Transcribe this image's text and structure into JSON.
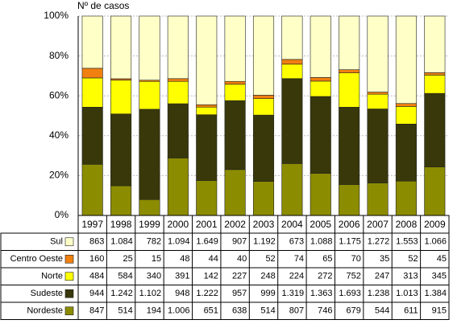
{
  "chart_data": {
    "type": "bar",
    "stack": "percent",
    "y_label": "Nº de casos",
    "categories": [
      "1997",
      "1998",
      "1999",
      "2000",
      "2001",
      "2002",
      "2003",
      "2004",
      "2005",
      "2006",
      "2007",
      "2008",
      "2009"
    ],
    "ylim": [
      0,
      100
    ],
    "yticks": [
      {
        "value": 0,
        "label": "0%"
      },
      {
        "value": 20,
        "label": "20%"
      },
      {
        "value": 40,
        "label": "40%"
      },
      {
        "value": 60,
        "label": "60%"
      },
      {
        "value": 80,
        "label": "80%"
      },
      {
        "value": 100,
        "label": "100%"
      }
    ],
    "grid": true,
    "series": [
      {
        "name": "Sul",
        "color": "#ffffc8",
        "values": [
          863,
          1084,
          782,
          1094,
          1649,
          907,
          1192,
          673,
          1088,
          1175,
          1272,
          1553,
          1066
        ],
        "value_labels": [
          "863",
          "1.084",
          "782",
          "1.094",
          "1.649",
          "907",
          "1.192",
          "673",
          "1.088",
          "1.175",
          "1.272",
          "1.553",
          "1.066"
        ]
      },
      {
        "name": "Centro Oeste",
        "color": "#f08010",
        "values": [
          160,
          25,
          15,
          48,
          44,
          40,
          52,
          74,
          65,
          70,
          35,
          52,
          45
        ]
      },
      {
        "name": "Norte",
        "color": "#ffff00",
        "values": [
          484,
          584,
          340,
          391,
          142,
          227,
          248,
          224,
          272,
          752,
          247,
          313,
          345
        ]
      },
      {
        "name": "Sudeste",
        "color": "#38380a",
        "values": [
          944,
          1242,
          1102,
          948,
          1222,
          957,
          999,
          1319,
          1363,
          1693,
          1238,
          1013,
          1384
        ],
        "value_labels": [
          "944",
          "1.242",
          "1.102",
          "948",
          "1.222",
          "957",
          "999",
          "1.319",
          "1.363",
          "1.693",
          "1.238",
          "1.013",
          "1.384"
        ]
      },
      {
        "name": "Nordeste",
        "color": "#8c8c00",
        "values": [
          847,
          514,
          194,
          1006,
          651,
          638,
          514,
          807,
          746,
          679,
          544,
          611,
          915
        ],
        "value_labels": [
          "847",
          "514",
          "194",
          "1.006",
          "651",
          "638",
          "514",
          "807",
          "746",
          "679",
          "544",
          "611",
          "915"
        ]
      }
    ]
  }
}
